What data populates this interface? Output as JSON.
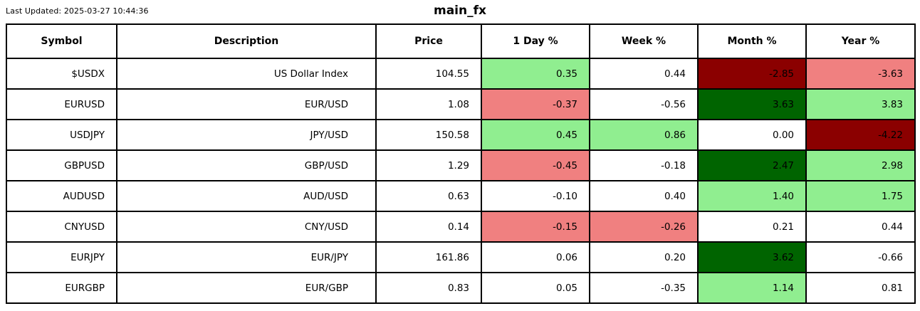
{
  "header": {
    "last_updated": "Last Updated: 2025-03-27 10:44:36",
    "title": "main_fx"
  },
  "palette": {
    "strong_gain": "#006400",
    "mild_gain": "#90EE90",
    "neutral": "#FFFFFF",
    "mild_loss": "#F08080",
    "strong_loss": "#8B0000",
    "border": "#000000",
    "text": "#000000"
  },
  "chart_data": {
    "type": "table",
    "title": "main_fx",
    "columns": [
      "Symbol",
      "Description",
      "Price",
      "1 Day %",
      "Week %",
      "Month %",
      "Year %"
    ],
    "rows": [
      {
        "symbol": "$USDX",
        "description": "US Dollar Index",
        "price": "104.55",
        "changes": [
          {
            "value": "0.35",
            "color": "#90EE90"
          },
          {
            "value": "0.44",
            "color": "#FFFFFF"
          },
          {
            "value": "-2.85",
            "color": "#8B0000"
          },
          {
            "value": "-3.63",
            "color": "#F08080"
          }
        ]
      },
      {
        "symbol": "EURUSD",
        "description": "EUR/USD",
        "price": "1.08",
        "changes": [
          {
            "value": "-0.37",
            "color": "#F08080"
          },
          {
            "value": "-0.56",
            "color": "#FFFFFF"
          },
          {
            "value": "3.63",
            "color": "#006400"
          },
          {
            "value": "3.83",
            "color": "#90EE90"
          }
        ]
      },
      {
        "symbol": "USDJPY",
        "description": "JPY/USD",
        "price": "150.58",
        "changes": [
          {
            "value": "0.45",
            "color": "#90EE90"
          },
          {
            "value": "0.86",
            "color": "#90EE90"
          },
          {
            "value": "0.00",
            "color": "#FFFFFF"
          },
          {
            "value": "-4.22",
            "color": "#8B0000"
          }
        ]
      },
      {
        "symbol": "GBPUSD",
        "description": "GBP/USD",
        "price": "1.29",
        "changes": [
          {
            "value": "-0.45",
            "color": "#F08080"
          },
          {
            "value": "-0.18",
            "color": "#FFFFFF"
          },
          {
            "value": "2.47",
            "color": "#006400"
          },
          {
            "value": "2.98",
            "color": "#90EE90"
          }
        ]
      },
      {
        "symbol": "AUDUSD",
        "description": "AUD/USD",
        "price": "0.63",
        "changes": [
          {
            "value": "-0.10",
            "color": "#FFFFFF"
          },
          {
            "value": "0.40",
            "color": "#FFFFFF"
          },
          {
            "value": "1.40",
            "color": "#90EE90"
          },
          {
            "value": "1.75",
            "color": "#90EE90"
          }
        ]
      },
      {
        "symbol": "CNYUSD",
        "description": "CNY/USD",
        "price": "0.14",
        "changes": [
          {
            "value": "-0.15",
            "color": "#F08080"
          },
          {
            "value": "-0.26",
            "color": "#F08080"
          },
          {
            "value": "0.21",
            "color": "#FFFFFF"
          },
          {
            "value": "0.44",
            "color": "#FFFFFF"
          }
        ]
      },
      {
        "symbol": "EURJPY",
        "description": "EUR/JPY",
        "price": "161.86",
        "changes": [
          {
            "value": "0.06",
            "color": "#FFFFFF"
          },
          {
            "value": "0.20",
            "color": "#FFFFFF"
          },
          {
            "value": "3.62",
            "color": "#006400"
          },
          {
            "value": "-0.66",
            "color": "#FFFFFF"
          }
        ]
      },
      {
        "symbol": "EURGBP",
        "description": "EUR/GBP",
        "price": "0.83",
        "changes": [
          {
            "value": "0.05",
            "color": "#FFFFFF"
          },
          {
            "value": "-0.35",
            "color": "#FFFFFF"
          },
          {
            "value": "1.14",
            "color": "#90EE90"
          },
          {
            "value": "0.81",
            "color": "#FFFFFF"
          }
        ]
      }
    ]
  }
}
